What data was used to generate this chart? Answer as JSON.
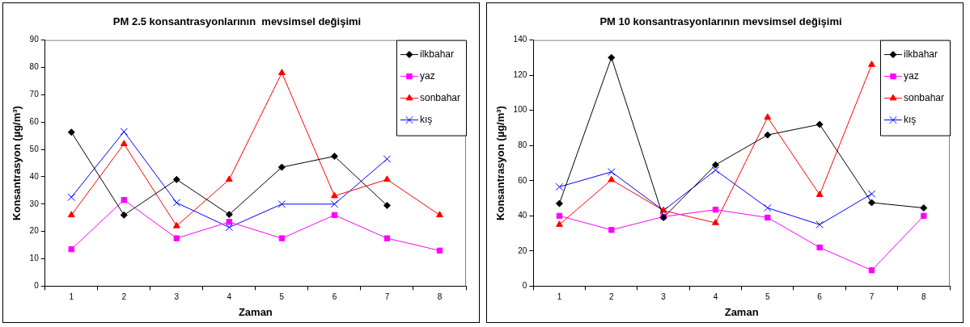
{
  "chart_data": [
    {
      "type": "line",
      "title": "PM 2.5 konsantrasyonlarının  mevsimsel değişimi",
      "xlabel": "Zaman",
      "ylabel": "Konsantrasyon (µg/m³)",
      "categories": [
        "1",
        "2",
        "3",
        "4",
        "5",
        "6",
        "7",
        "8"
      ],
      "ylim": [
        0,
        90
      ],
      "yticks": [
        0,
        10,
        20,
        30,
        40,
        50,
        60,
        70,
        80,
        90
      ],
      "grid": false,
      "legend": "top right",
      "series": [
        {
          "name": "ilkbahar",
          "color": "#000000",
          "marker": "diamond",
          "values": [
            56.3,
            26,
            39,
            26.2,
            43.5,
            47.5,
            29.5,
            null
          ]
        },
        {
          "name": "yaz",
          "color": "#ff00ff",
          "marker": "square",
          "values": [
            13.5,
            31.5,
            17.5,
            23.5,
            17.5,
            26,
            17.5,
            13
          ]
        },
        {
          "name": "sonbahar",
          "color": "#ff0000",
          "marker": "triangle",
          "values": [
            26,
            52,
            22,
            39,
            78,
            33,
            39,
            26
          ]
        },
        {
          "name": "kış",
          "color": "#0000ff",
          "marker": "cross",
          "values": [
            32.5,
            56.5,
            30.5,
            21.5,
            30,
            30,
            46.5,
            null
          ]
        }
      ]
    },
    {
      "type": "line",
      "title": "PM 10 konsantrasyonlarının mevsimsel değişimi",
      "xlabel": "Zaman",
      "ylabel": "Konsantrasyon (µg/m³)",
      "categories": [
        "1",
        "2",
        "3",
        "4",
        "5",
        "6",
        "7",
        "8"
      ],
      "ylim": [
        0,
        140
      ],
      "yticks": [
        0,
        20,
        40,
        60,
        80,
        100,
        120,
        140
      ],
      "grid": false,
      "legend": "top right",
      "series": [
        {
          "name": "ilkbahar",
          "color": "#000000",
          "marker": "diamond",
          "values": [
            47,
            130,
            39,
            69,
            86,
            92,
            47.5,
            44.5
          ]
        },
        {
          "name": "yaz",
          "color": "#ff00ff",
          "marker": "square",
          "values": [
            40,
            32,
            39.5,
            43.5,
            39,
            22,
            9,
            40
          ]
        },
        {
          "name": "sonbahar",
          "color": "#ff0000",
          "marker": "triangle",
          "values": [
            35,
            60.5,
            43,
            36,
            96,
            52,
            126,
            null
          ]
        },
        {
          "name": "kış",
          "color": "#0000ff",
          "marker": "cross",
          "values": [
            56.5,
            65,
            43,
            66,
            44.5,
            35,
            52.5,
            null
          ]
        }
      ]
    }
  ]
}
